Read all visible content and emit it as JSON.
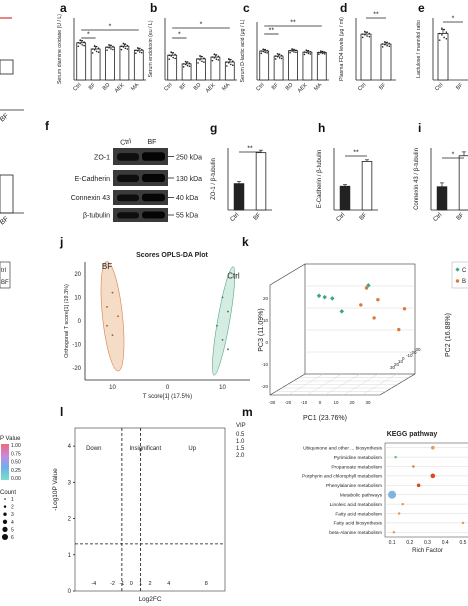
{
  "panel_letters": {
    "a": "a",
    "b": "b",
    "c": "c",
    "d": "d",
    "e": "e",
    "f": "f",
    "g": "g",
    "h": "h",
    "i": "i",
    "j": "j",
    "k": "k",
    "l": "l",
    "m": "m"
  },
  "left_fragments": {
    "bf1": "BF",
    "bf2": "BF",
    "bf3": "BF",
    "fr1": "trl",
    "fr2": "BF",
    "legend_title": "P Value",
    "legend_values": [
      "1.00",
      "0.75",
      "0.50",
      "0.25",
      "0.00"
    ],
    "count_title": "Count",
    "count_values": [
      "1",
      "2",
      "3",
      "4",
      "5",
      "6"
    ]
  },
  "colors": {
    "ctrl": "#6fbf9a",
    "bf": "#e39a5b",
    "bar_dark": "#222222",
    "bar_light": "#ffffff"
  },
  "chart_data": [
    {
      "id": "a",
      "type": "bar",
      "ylabel": "Serum diamine oxidase (U / L)",
      "categories": [
        "Ctrl",
        "BF",
        "BD",
        "AEK",
        "MA"
      ],
      "values": [
        12.0,
        10.0,
        10.6,
        10.9,
        9.6
      ],
      "errors": [
        0.7,
        0.8,
        0.6,
        0.7,
        0.6
      ],
      "ylim": [
        0,
        20
      ],
      "sig": [
        "*",
        "*"
      ]
    },
    {
      "id": "b",
      "type": "bar",
      "ylabel": "Serum endotoxin (eu / L)",
      "categories": [
        "Ctrl",
        "BF",
        "BD",
        "AEK",
        "MA"
      ],
      "values": [
        20.0,
        13.0,
        17.0,
        18.5,
        14.5
      ],
      "errors": [
        2.0,
        1.5,
        2.0,
        1.8,
        2.0
      ],
      "ylim": [
        0,
        50
      ],
      "sig": [
        "*",
        "*"
      ]
    },
    {
      "id": "c",
      "type": "bar",
      "ylabel": "Serum D-lactic acid (μg / L)",
      "categories": [
        "Ctrl",
        "BF",
        "BD",
        "AEK",
        "MA"
      ],
      "values": [
        40.0,
        33.0,
        40.5,
        38.5,
        38.0
      ],
      "errors": [
        2.0,
        2.5,
        1.8,
        2.0,
        1.5
      ],
      "ylim": [
        0,
        80
      ],
      "sig": [
        "**",
        "**"
      ]
    },
    {
      "id": "d",
      "type": "bar",
      "ylabel": "Plasma FD4 levels (μg / ml)",
      "categories": [
        "Ctrl",
        "BF"
      ],
      "values": [
        1.85,
        1.45
      ],
      "errors": [
        0.08,
        0.07
      ],
      "ylim": [
        0,
        2.5
      ],
      "sig": [
        "**"
      ]
    },
    {
      "id": "e",
      "type": "bar",
      "ylabel": "Lactulose / mannitol ratio",
      "categories": [
        "Ctrl",
        "BF"
      ],
      "values": [
        0.45,
        0.0
      ],
      "errors": [
        0.04,
        0.0
      ],
      "ylim": [
        0,
        0.6
      ],
      "sig": [
        "*"
      ]
    },
    {
      "id": "g",
      "type": "bar",
      "ylabel": "ZO-1 / β-tubulin",
      "categories": [
        "Ctrl",
        "BF"
      ],
      "values": [
        0.85,
        1.85
      ],
      "errors": [
        0.07,
        0.08
      ],
      "ylim": [
        0,
        2.0
      ],
      "sig": [
        "**"
      ]
    },
    {
      "id": "h",
      "type": "bar",
      "ylabel": "E-Cadherin / β-tubulin",
      "categories": [
        "Ctrl",
        "BF"
      ],
      "values": [
        1.15,
        2.35
      ],
      "errors": [
        0.08,
        0.08
      ],
      "ylim": [
        0,
        3.0
      ],
      "sig": [
        "**"
      ]
    },
    {
      "id": "i",
      "type": "bar",
      "ylabel": "Connexin 43 / β-tubulin",
      "categories": [
        "Ctrl",
        "BF"
      ],
      "values": [
        0.6,
        1.4
      ],
      "errors": [
        0.1,
        0.1
      ],
      "ylim": [
        0,
        1.6
      ],
      "sig": [
        "*"
      ]
    },
    {
      "id": "j",
      "type": "scatter",
      "title": "Scores OPLS-DA Plot",
      "xlabel": "T score[1] (17.5%)",
      "ylabel": "Orthogonal T score[1] (19.3%)",
      "xticks": [
        "10",
        "0",
        "10"
      ],
      "yticks": [
        "20",
        "10",
        "0",
        "-10",
        "-20"
      ],
      "groups": [
        {
          "name": "BF",
          "points": [
            [
              -10,
              12
            ],
            [
              -11,
              6
            ],
            [
              -9,
              2
            ],
            [
              -10,
              -6
            ],
            [
              -11,
              -2
            ]
          ]
        },
        {
          "name": "Ctrl",
          "points": [
            [
              10,
              10
            ],
            [
              11,
              4
            ],
            [
              9,
              -2
            ],
            [
              10,
              -8
            ],
            [
              11,
              -12
            ]
          ]
        }
      ]
    },
    {
      "id": "k",
      "type": "scatter",
      "title": "",
      "xlabel": "PC1 (23.76%)",
      "ylabel": "PC3 (11.09%)",
      "zlabel": "PC2 (16.88%)",
      "xticks": [
        "-30",
        "-20",
        "-10",
        "0",
        "10",
        "20",
        "30"
      ],
      "yticks": [
        "20",
        "10",
        "0",
        "-10",
        "-20"
      ],
      "zticks": [
        "30",
        "20",
        "10",
        "0",
        "-10",
        "-20",
        "-30"
      ],
      "legend": [
        "C",
        "B"
      ],
      "groups": [
        {
          "name": "C",
          "points": [
            [
              0.3,
              0.26
            ],
            [
              0.33,
              0.27
            ],
            [
              0.37,
              0.28
            ],
            [
              0.42,
              0.38
            ],
            [
              0.56,
              0.18
            ]
          ]
        },
        {
          "name": "B",
          "points": [
            [
              0.52,
              0.33
            ],
            [
              0.61,
              0.29
            ],
            [
              0.55,
              0.2
            ],
            [
              0.72,
              0.52
            ],
            [
              0.75,
              0.36
            ],
            [
              0.59,
              0.43
            ]
          ]
        }
      ]
    },
    {
      "id": "l",
      "type": "scatter",
      "title": "",
      "xlabel": "Log2FC",
      "ylabel": "-Log10P Value",
      "regions": [
        "Down",
        "Insignificant",
        "Up"
      ],
      "xticks": [
        "-4",
        "-2",
        "-1",
        "0",
        "1",
        "2",
        "4",
        "8"
      ],
      "yticks": [
        "4",
        "3",
        "2",
        "1",
        "0"
      ],
      "legend_title": "VIP",
      "legend_values": [
        "0.5",
        "1.0",
        "1.5",
        "2.0"
      ],
      "vlines": [
        -1,
        1
      ],
      "hline": 1.3
    },
    {
      "id": "m",
      "type": "scatter",
      "title": "KEGG pathway",
      "xlabel": "Rich Factor",
      "xticks": [
        "0.1",
        "0.2",
        "0.3",
        "0.4",
        "0.5"
      ],
      "categories": [
        "Ubiquinone and other ... biosynthesis",
        "Pyrimidine metabolism",
        "Propanoate metabolism",
        "Porphyrin and chlorophyll metabolism",
        "Phenylalanine metabolism",
        "Metabolic pathways",
        "Linoleic acid metabolism",
        "Fatty acid metabolism",
        "Fatty acid biosynthesis",
        "beta-Alanine metabolism"
      ],
      "points": [
        {
          "x": 0.33,
          "size": 2,
          "color": "#e39a5b"
        },
        {
          "x": 0.12,
          "size": 1,
          "color": "#6fbf6f"
        },
        {
          "x": 0.22,
          "size": 1,
          "color": "#e07a3a"
        },
        {
          "x": 0.33,
          "size": 3,
          "color": "#d94a2a"
        },
        {
          "x": 0.25,
          "size": 2,
          "color": "#d94a2a"
        },
        {
          "x": 0.1,
          "size": 6,
          "color": "#7fb3e0"
        },
        {
          "x": 0.16,
          "size": 1,
          "color": "#e39a5b"
        },
        {
          "x": 0.14,
          "size": 1,
          "color": "#e39a5b"
        },
        {
          "x": 0.5,
          "size": 1,
          "color": "#e39a5b"
        },
        {
          "x": 0.11,
          "size": 1,
          "color": "#e39a5b"
        }
      ]
    }
  ],
  "western_blot": {
    "header": [
      "Ctrl",
      "BF"
    ],
    "bands": [
      {
        "name": "ZO-1",
        "kda": "250 kDa"
      },
      {
        "name": "E-Cadherin",
        "kda": "130 kDa"
      },
      {
        "name": "Connexin 43",
        "kda": "40 kDa"
      },
      {
        "name": "β-tubulin",
        "kda": "55 kDa"
      }
    ]
  }
}
